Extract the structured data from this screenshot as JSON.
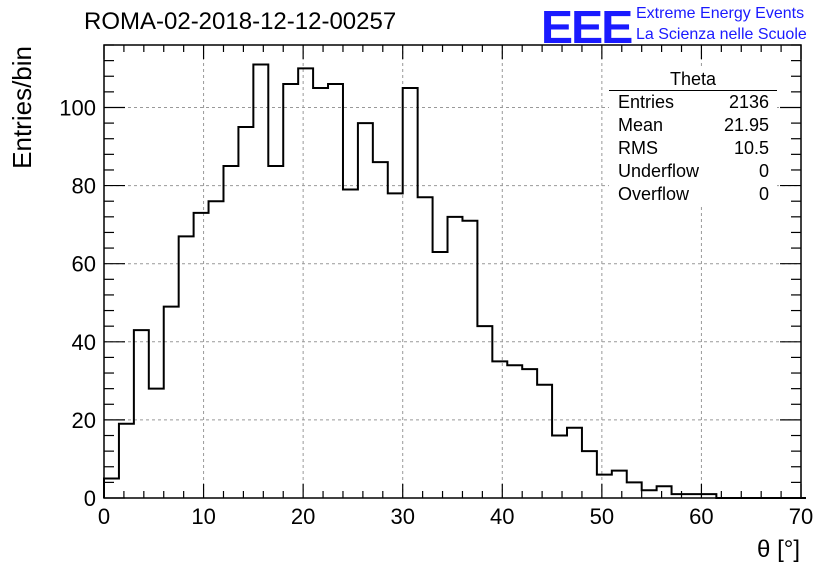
{
  "title": "ROMA-02-2018-12-12-00257",
  "logo": {
    "mark": "EEE",
    "line1": "Extreme Energy Events",
    "line2": "La Scienza nelle Scuole",
    "color": "#1a1aff"
  },
  "stats": {
    "title": "Theta",
    "rows": [
      {
        "label": "Entries",
        "value": "2136"
      },
      {
        "label": "Mean",
        "value": "21.95"
      },
      {
        "label": "RMS",
        "value": "10.5"
      },
      {
        "label": "Underflow",
        "value": "0"
      },
      {
        "label": "Overflow",
        "value": "0"
      }
    ]
  },
  "chart_data": {
    "type": "histogram",
    "xlabel": "θ [°]",
    "ylabel": "Entries/bin",
    "xlim": [
      0,
      70
    ],
    "ylim": [
      0,
      116
    ],
    "bin_width": 1.5,
    "x_start": 0,
    "xticks": [
      0,
      10,
      20,
      30,
      40,
      50,
      60,
      70
    ],
    "yticks": [
      0,
      20,
      40,
      60,
      80,
      100
    ],
    "grid": true,
    "values": [
      5,
      19,
      43,
      28,
      49,
      67,
      73,
      76,
      85,
      95,
      111,
      85,
      106,
      110,
      105,
      106,
      79,
      96,
      86,
      78,
      105,
      77,
      63,
      72,
      71,
      44,
      35,
      34,
      33,
      29,
      16,
      18,
      12,
      6,
      7,
      4,
      2,
      3,
      1,
      1,
      1,
      0,
      0,
      0,
      0,
      0,
      0
    ]
  }
}
